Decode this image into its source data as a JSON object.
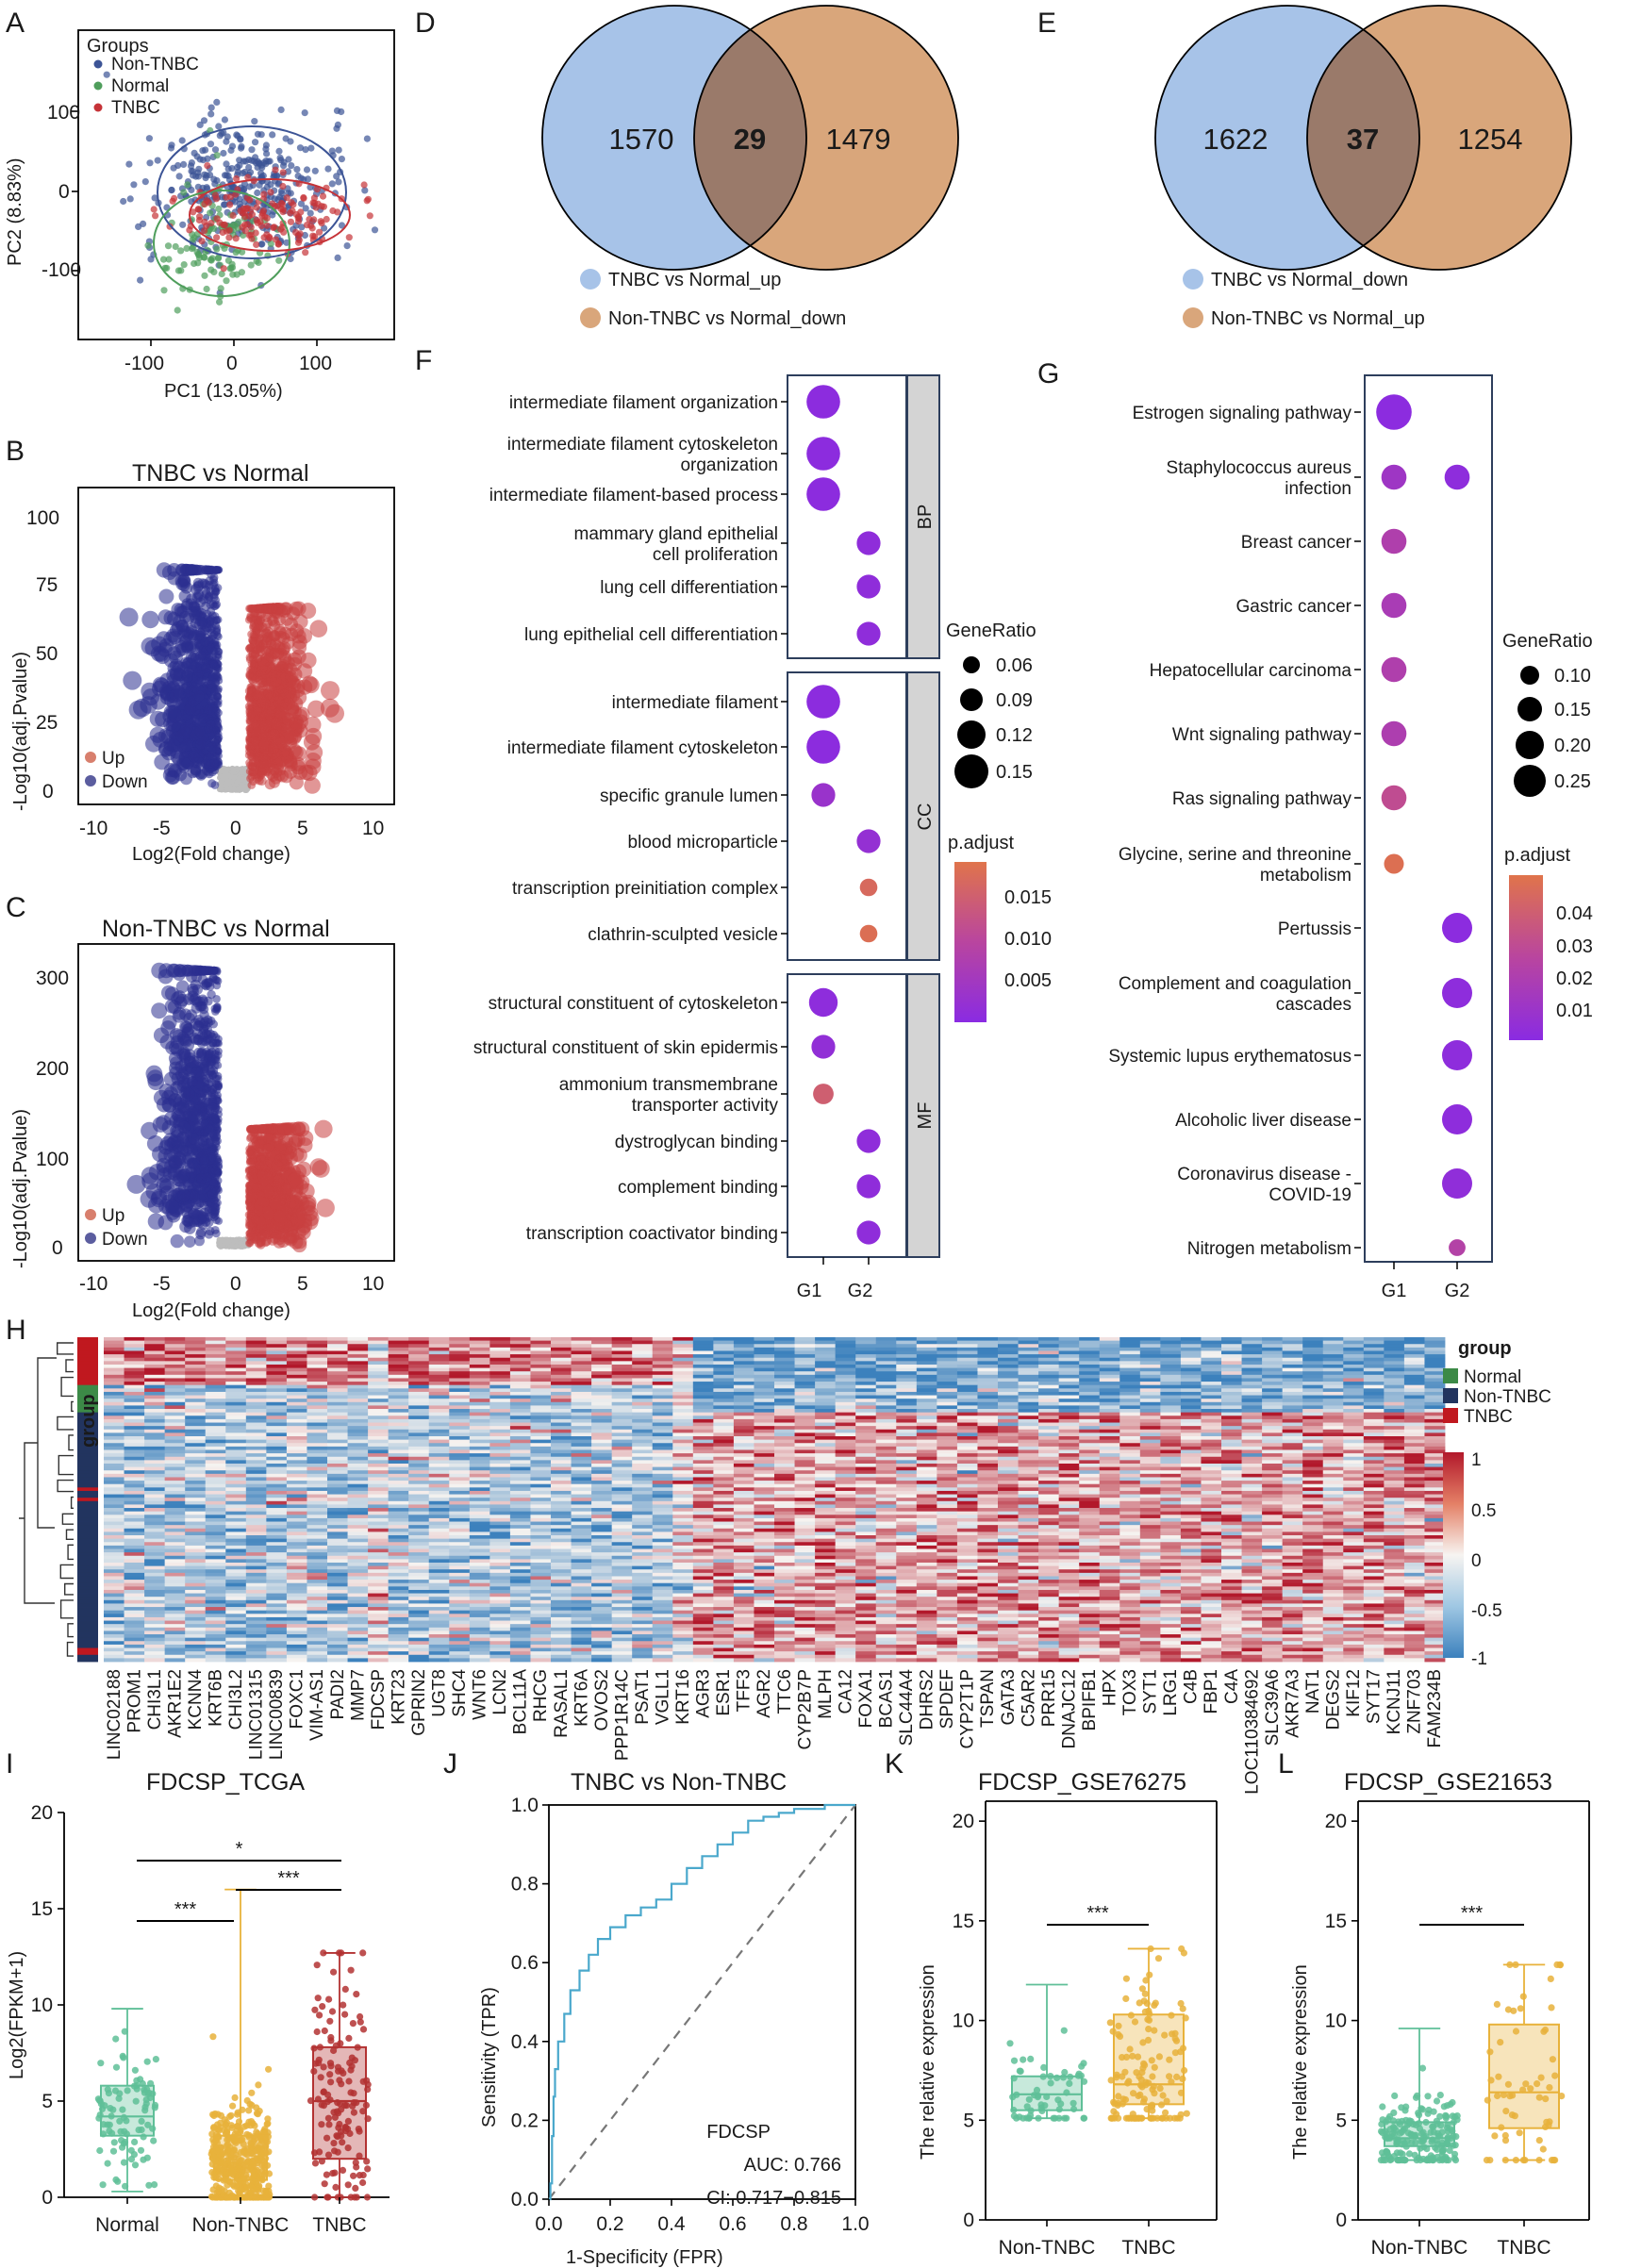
{
  "panels": {
    "A": "A",
    "B": "B",
    "C": "C",
    "D": "D",
    "E": "E",
    "F": "F",
    "G": "G",
    "H": "H",
    "I": "I",
    "J": "J",
    "K": "K",
    "L": "L"
  },
  "colors": {
    "non_tnbc": "#3c5496",
    "normal": "#4f9e5c",
    "tnbc": "#c63338",
    "up": "#d87f6d",
    "down": "#5b5d9f",
    "venn_left": "#a7c3e8",
    "venn_right": "#d9a67b",
    "box_normal": "#5fbf98",
    "box_non": "#e8b23b",
    "box_tnbc": "#b33232",
    "roc": "#4aa8cc"
  },
  "pca": {
    "legend_title": "Groups",
    "groups": [
      "Non-TNBC",
      "Normal",
      "TNBC"
    ],
    "xlabel": "PC1 (13.05%)",
    "ylabel": "PC2 (8.83%)",
    "xticks": [
      "-100",
      "0",
      "100"
    ],
    "yticks": [
      "100",
      "0",
      "-100"
    ]
  },
  "volcano_b": {
    "title": "TNBC vs Normal",
    "xticks": [
      "-10",
      "-5",
      "0",
      "5",
      "10"
    ],
    "yticks": [
      "0",
      "25",
      "50",
      "75",
      "100"
    ],
    "legend": [
      "Up",
      "Down"
    ]
  },
  "volcano_c": {
    "title": "Non-TNBC vs Normal",
    "xticks": [
      "-10",
      "-5",
      "0",
      "5",
      "10"
    ],
    "yticks": [
      "0",
      "100",
      "200",
      "300"
    ],
    "legend": [
      "Up",
      "Down"
    ]
  },
  "volcano_axes": {
    "ylabel": "-Log10(adj.Pvalue)",
    "xlabel": "Log2(Fold change)",
    "sub": "10",
    "sub2": "2"
  },
  "venn_d": {
    "left": "1570",
    "overlap": "29",
    "right": "1479",
    "legend": [
      "TNBC vs Normal_up",
      "Non-TNBC vs Normal_down"
    ]
  },
  "venn_e": {
    "left": "1622",
    "overlap": "37",
    "right": "1254",
    "legend": [
      "TNBC vs Normal_down",
      "Non-TNBC vs Normal_up"
    ]
  },
  "go": {
    "facets": [
      "BP",
      "CC",
      "MF"
    ],
    "terms": [
      {
        "label": "intermediate filament organization",
        "g": 1,
        "ratio": 0.15,
        "p": 0.0005
      },
      {
        "label": "intermediate filament cytoskeleton|organization",
        "g": 1,
        "ratio": 0.15,
        "p": 0.0005
      },
      {
        "label": "intermediate filament-based process",
        "g": 1,
        "ratio": 0.15,
        "p": 0.0005
      },
      {
        "label": "mammary gland epithelial|cell proliferation",
        "g": 2,
        "ratio": 0.09,
        "p": 0.001
      },
      {
        "label": "lung cell differentiation",
        "g": 2,
        "ratio": 0.09,
        "p": 0.001
      },
      {
        "label": "lung epithelial cell differentiation",
        "g": 2,
        "ratio": 0.09,
        "p": 0.001
      },
      {
        "label": "intermediate filament",
        "g": 1,
        "ratio": 0.15,
        "p": 0.0005
      },
      {
        "label": "intermediate filament cytoskeleton",
        "g": 1,
        "ratio": 0.15,
        "p": 0.0005
      },
      {
        "label": "specific granule lumen",
        "g": 1,
        "ratio": 0.09,
        "p": 0.003
      },
      {
        "label": "blood microparticle",
        "g": 2,
        "ratio": 0.09,
        "p": 0.002
      },
      {
        "label": "transcription preinitiation complex",
        "g": 2,
        "ratio": 0.05,
        "p": 0.016
      },
      {
        "label": "clathrin-sculpted vesicle",
        "g": 2,
        "ratio": 0.05,
        "p": 0.017
      },
      {
        "label": "structural constituent of cytoskeleton",
        "g": 1,
        "ratio": 0.12,
        "p": 0.0008
      },
      {
        "label": "structural constituent of skin epidermis",
        "g": 1,
        "ratio": 0.09,
        "p": 0.0015
      },
      {
        "label": "ammonium transmembrane|transporter activity",
        "g": 1,
        "ratio": 0.07,
        "p": 0.014
      },
      {
        "label": "dystroglycan binding",
        "g": 2,
        "ratio": 0.09,
        "p": 0.001
      },
      {
        "label": "complement binding",
        "g": 2,
        "ratio": 0.09,
        "p": 0.001
      },
      {
        "label": "transcription coactivator binding",
        "g": 2,
        "ratio": 0.09,
        "p": 0.001
      }
    ],
    "size_title": "GeneRatio",
    "size_values": [
      "0.06",
      "0.09",
      "0.12",
      "0.15"
    ],
    "color_title": "p.adjust",
    "color_values": [
      "0.015",
      "0.010",
      "0.005"
    ],
    "groups": [
      "G1",
      "G2"
    ]
  },
  "kegg": {
    "terms": [
      {
        "label": "Estrogen signaling pathway",
        "g": 1,
        "ratio": 0.25,
        "p": 0.001
      },
      {
        "label": "Staphylococcus aureus|infection",
        "g": 1,
        "ratio": 0.15,
        "p": 0.01
      },
      {
        "label": "Breast cancer",
        "g": 1,
        "ratio": 0.15,
        "p": 0.018
      },
      {
        "label": "Gastric cancer",
        "g": 1,
        "ratio": 0.15,
        "p": 0.015
      },
      {
        "label": "Hepatocellular carcinoma",
        "g": 1,
        "ratio": 0.15,
        "p": 0.018
      },
      {
        "label": "Wnt signaling pathway",
        "g": 1,
        "ratio": 0.15,
        "p": 0.017
      },
      {
        "label": "Ras signaling pathway",
        "g": 1,
        "ratio": 0.15,
        "p": 0.026
      },
      {
        "label": "Glycine, serine and threonine|metabolism",
        "g": 1,
        "ratio": 0.1,
        "p": 0.043
      },
      {
        "label": "Pertussis",
        "g": 2,
        "ratio": 0.2,
        "p": 0.001
      },
      {
        "label": "Complement and coagulation|cascades",
        "g": 2,
        "ratio": 0.2,
        "p": 0.002
      },
      {
        "label": "Systemic lupus erythematosus",
        "g": 2,
        "ratio": 0.2,
        "p": 0.002
      },
      {
        "label": "Alcoholic liver disease",
        "g": 2,
        "ratio": 0.2,
        "p": 0.002
      },
      {
        "label": "Coronavirus disease -|COVID-19",
        "g": 2,
        "ratio": 0.2,
        "p": 0.003
      },
      {
        "label": "Nitrogen metabolism",
        "g": 2,
        "ratio": 0.07,
        "p": 0.02
      }
    ],
    "s_aureus_g2": {
      "g": 2,
      "ratio": 0.15,
      "p": 0.002
    },
    "size_title": "GeneRatio",
    "size_values": [
      "0.10",
      "0.15",
      "0.20",
      "0.25"
    ],
    "color_title": "p.adjust",
    "color_values": [
      "0.04",
      "0.03",
      "0.02",
      "0.01"
    ],
    "groups": [
      "G1",
      "G2"
    ]
  },
  "heatmap": {
    "legend_title": "group",
    "groups": [
      "Normal",
      "Non-TNBC",
      "TNBC"
    ],
    "scale": [
      "1",
      "0.5",
      "0",
      "-0.5",
      "-1"
    ],
    "row_label": "group",
    "genes": [
      "LINC02188",
      "PROM1",
      "CHI3L1",
      "AKR1E2",
      "KCNN4",
      "KRT6B",
      "CHI3L2",
      "LINC01315",
      "LINC00839",
      "FOXC1",
      "VIM-AS1",
      "PADI2",
      "MMP7",
      "FDCSP",
      "KRT23",
      "GPRIN2",
      "UGT8",
      "SHC4",
      "WNT6",
      "LCN2",
      "BCL11A",
      "RHCG",
      "RASAL1",
      "KRT6A",
      "OVOS2",
      "PPP1R14C",
      "PSAT1",
      "VGLL1",
      "KRT16",
      "AGR3",
      "ESR1",
      "TFF3",
      "AGR2",
      "TTC6",
      "CYP2B7P",
      "MLPH",
      "CA12",
      "FOXA1",
      "BCAS1",
      "SLC44A4",
      "DHRS2",
      "SPDEF",
      "CYP2T1P",
      "TSPAN",
      "GATA3",
      "C5AR2",
      "PRR15",
      "DNAJC12",
      "BPIFB1",
      "HPX",
      "TOX3",
      "SYT1",
      "LRG1",
      "C4B",
      "FBP1",
      "C4A",
      "LOC110384692",
      "SLC39A6",
      "AKR7A3",
      "NAT1",
      "DEGS2",
      "KIF12",
      "SYT17",
      "KCNJ11",
      "ZNF703",
      "FAM234B"
    ]
  },
  "box_i": {
    "title": "FDCSP_TCGA",
    "ylabel": "Log2(FPKM+1)",
    "categories": [
      "Normal",
      "Non-TNBC",
      "TNBC"
    ],
    "medians": [
      4.2,
      1.8,
      5.0
    ],
    "q1": [
      3.2,
      0.9,
      2.0
    ],
    "q3": [
      5.8,
      3.2,
      7.8
    ],
    "whisker_low": [
      0.3,
      0,
      0
    ],
    "whisker_high": [
      9.8,
      16,
      12.7
    ],
    "yticks": [
      "0",
      "5",
      "10",
      "15",
      "20"
    ],
    "ylim": [
      0,
      20
    ],
    "sig": [
      "***",
      "*",
      "***"
    ]
  },
  "roc": {
    "title": "TNBC vs Non-TNBC",
    "xlabel": "1-Specificity (FPR)",
    "ylabel": "Sensitivity (TPR)",
    "marker": "FDCSP",
    "auc": "AUC: 0.766",
    "ci": "CI: 0.717−0.815",
    "ticks": [
      "0.0",
      "0.2",
      "0.4",
      "0.6",
      "0.8",
      "1.0"
    ],
    "fpr": [
      0,
      0.005,
      0.01,
      0.015,
      0.02,
      0.03,
      0.05,
      0.07,
      0.1,
      0.13,
      0.16,
      0.2,
      0.25,
      0.3,
      0.35,
      0.4,
      0.45,
      0.5,
      0.55,
      0.6,
      0.65,
      0.7,
      0.75,
      0.8,
      0.85,
      0.9,
      0.95,
      1.0
    ],
    "tpr": [
      0,
      0.04,
      0.16,
      0.26,
      0.33,
      0.4,
      0.47,
      0.53,
      0.58,
      0.62,
      0.66,
      0.69,
      0.72,
      0.74,
      0.76,
      0.8,
      0.84,
      0.87,
      0.9,
      0.93,
      0.96,
      0.97,
      0.98,
      0.99,
      0.99,
      1.0,
      1.0,
      1.0
    ]
  },
  "box_k": {
    "title": "FDCSP_GSE76275",
    "ylabel": "The relative expression",
    "categories": [
      "Non-TNBC",
      "TNBC"
    ],
    "medians": [
      6.3,
      6.8
    ],
    "q1": [
      5.5,
      5.8
    ],
    "q3": [
      7.2,
      10.3
    ],
    "whisker_low": [
      5.1,
      5.1
    ],
    "whisker_high": [
      11.8,
      13.6
    ],
    "yticks": [
      "0",
      "5",
      "10",
      "15",
      "20"
    ],
    "ylim": [
      0,
      21
    ],
    "sig": "***"
  },
  "box_l": {
    "title": "FDCSP_GSE21653",
    "ylabel": "The relative expression",
    "categories": [
      "Non-TNBC",
      "TNBC"
    ],
    "medians": [
      4.1,
      6.4
    ],
    "q1": [
      3.7,
      4.6
    ],
    "q3": [
      4.9,
      9.8
    ],
    "whisker_low": [
      3.0,
      3.0
    ],
    "whisker_high": [
      9.6,
      12.8
    ],
    "yticks": [
      "0",
      "5",
      "10",
      "15",
      "20"
    ],
    "ylim": [
      0,
      21
    ],
    "sig": "***"
  }
}
